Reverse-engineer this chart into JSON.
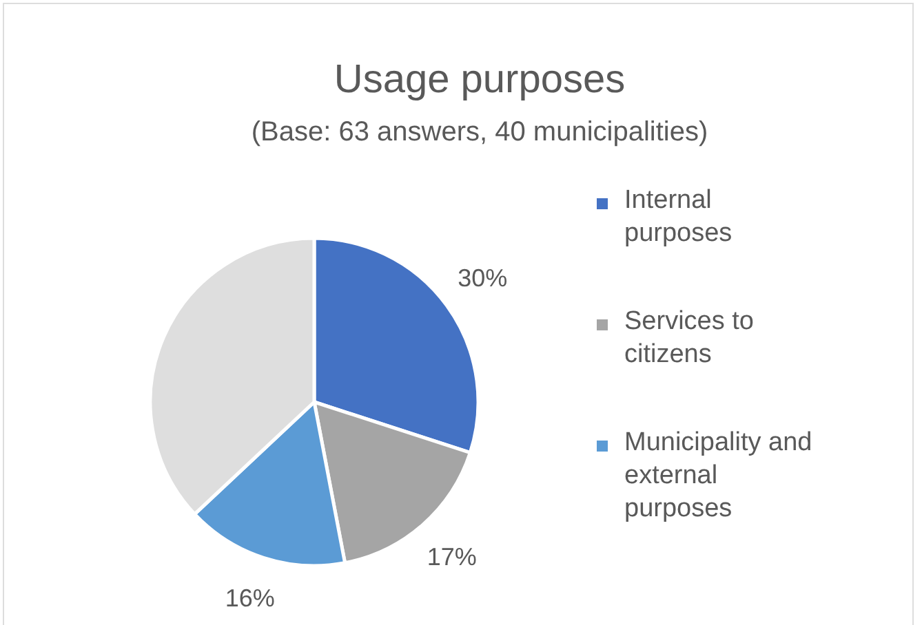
{
  "chart_data": {
    "type": "pie",
    "title": "Usage purposes",
    "subtitle": "(Base: 63 answers, 40 municipalities)",
    "categories": [
      "Internal purposes",
      "Services to citizens",
      "Municipality and external purposes",
      null
    ],
    "values": [
      30,
      17,
      16,
      37
    ],
    "colors": [
      "#4472c4",
      "#a5a5a5",
      "#5b9bd5",
      "#dedede"
    ],
    "value_labels": [
      "30%",
      "17%",
      "16%",
      null
    ],
    "legend": "right"
  }
}
